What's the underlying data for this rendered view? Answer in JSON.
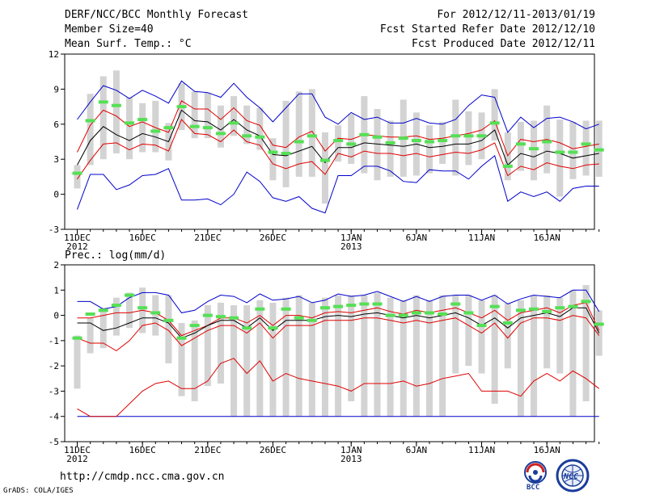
{
  "header": {
    "title": "DERF/NCC/BCC Monthly Forecast",
    "member_size": "Member Size=40",
    "variable1": "Mean Surf. Temp.: °C",
    "period": "For 2012/12/11-2013/01/19",
    "started": "Fcst Started Refer Date 2012/12/10",
    "produced": "Fcst Produced Date 2012/12/11"
  },
  "footer": {
    "url": "http://cmdp.ncc.cma.gov.cn",
    "grads": "GrADS: COLA/IGES",
    "logo_bcc": "BCC",
    "logo_ncc": "NCC"
  },
  "colors": {
    "box": "#d3d3d3",
    "median": "#55e055",
    "mean": "#000000",
    "std": "#e00000",
    "extreme": "#0000cc"
  },
  "chart_data": [
    {
      "type": "line",
      "title": "Mean Surf. Temp.: °C",
      "xlabel": "",
      "ylabel": "",
      "xlim": [
        0,
        39
      ],
      "ylim": [
        -3,
        12
      ],
      "yticks": [
        -3,
        0,
        3,
        6,
        9,
        12
      ],
      "xticks": [
        {
          "i": 0,
          "label": "11DEC",
          "sub": "2012"
        },
        {
          "i": 5,
          "label": "16DEC",
          "sub": ""
        },
        {
          "i": 10,
          "label": "21DEC",
          "sub": ""
        },
        {
          "i": 15,
          "label": "26DEC",
          "sub": ""
        },
        {
          "i": 21,
          "label": "1JAN",
          "sub": "2013"
        },
        {
          "i": 26,
          "label": "6JAN",
          "sub": ""
        },
        {
          "i": 31,
          "label": "11JAN",
          "sub": ""
        },
        {
          "i": 36,
          "label": "16JAN",
          "sub": ""
        }
      ],
      "series": [
        {
          "name": "max",
          "role": "extreme",
          "values": [
            -1.3,
            1.7,
            1.7,
            0.4,
            0.8,
            1.6,
            1.7,
            2.2,
            -0.5,
            -0.5,
            -0.4,
            -0.9,
            0.0,
            1.9,
            1.1,
            -0.3,
            -0.6,
            -0.2,
            -1.2,
            -1.6,
            1.6,
            1.6,
            2.4,
            2.4,
            2.0,
            1.1,
            1.0,
            2.1,
            2.0,
            2.0,
            1.3,
            2.4,
            3.3,
            -0.6,
            0.2,
            -0.2,
            0.2,
            -0.6,
            0.5,
            0.7,
            0.7
          ]
        },
        {
          "name": "min",
          "role": "extreme",
          "values": [
            6.4,
            7.9,
            9.3,
            8.9,
            8.2,
            8.9,
            8.4,
            7.8,
            9.7,
            8.8,
            8.7,
            8.3,
            9.5,
            8.3,
            7.4,
            6.2,
            7.4,
            8.6,
            8.6,
            6.6,
            6.0,
            7.0,
            6.4,
            6.6,
            6.1,
            6.1,
            6.5,
            6.1,
            6.0,
            6.4,
            7.6,
            8.5,
            8.3,
            5.3,
            6.6,
            5.7,
            6.5,
            6.6,
            6.2,
            5.6,
            6.0
          ]
        },
        {
          "name": "mean+std",
          "role": "std",
          "values": [
            3.6,
            5.9,
            7.2,
            6.7,
            5.8,
            6.2,
            5.7,
            5.3,
            8.0,
            7.3,
            7.3,
            6.4,
            7.4,
            6.3,
            5.9,
            4.2,
            4.0,
            4.9,
            5.4,
            3.7,
            4.8,
            4.7,
            5.1,
            5.0,
            4.9,
            4.9,
            5.0,
            4.7,
            4.8,
            5.0,
            5.2,
            5.5,
            6.3,
            3.3,
            4.7,
            4.5,
            4.7,
            4.4,
            3.9,
            4.1,
            4.3
          ]
        },
        {
          "name": "mean-std",
          "role": "std",
          "values": [
            1.3,
            2.9,
            4.3,
            4.4,
            3.8,
            4.3,
            4.2,
            3.7,
            6.4,
            5.2,
            5.1,
            4.5,
            5.5,
            4.5,
            4.2,
            2.6,
            2.2,
            2.6,
            2.8,
            1.7,
            3.5,
            3.2,
            3.7,
            3.5,
            3.5,
            3.3,
            3.5,
            3.2,
            3.4,
            3.6,
            3.5,
            3.8,
            4.4,
            1.6,
            2.4,
            2.1,
            2.7,
            2.4,
            2.2,
            2.5,
            2.6
          ]
        },
        {
          "name": "mean",
          "role": "mean",
          "values": [
            2.5,
            4.6,
            5.8,
            5.1,
            4.6,
            5.2,
            4.9,
            4.5,
            7.2,
            6.3,
            6.2,
            5.5,
            6.4,
            5.5,
            5.0,
            3.4,
            3.3,
            3.7,
            4.1,
            2.7,
            4.0,
            4.0,
            4.4,
            4.3,
            4.2,
            4.1,
            4.3,
            4.0,
            4.1,
            4.3,
            4.3,
            4.6,
            5.5,
            2.5,
            3.5,
            3.2,
            3.7,
            3.5,
            3.1,
            3.3,
            3.5
          ]
        }
      ],
      "boxes": {
        "low": [
          0.5,
          2.5,
          3.0,
          3.5,
          3.0,
          3.6,
          3.6,
          2.9,
          5.5,
          4.8,
          4.8,
          4.0,
          5.0,
          4.3,
          3.8,
          1.2,
          0.6,
          1.5,
          1.5,
          -0.8,
          2.8,
          2.6,
          1.8,
          1.2,
          1.5,
          1.5,
          1.6,
          1.8,
          2.6,
          1.6,
          2.5,
          3.0,
          4.6,
          1.2,
          2.0,
          1.2,
          1.8,
          -0.2,
          1.3,
          1.6,
          1.5
        ],
        "high": [
          2.5,
          8.6,
          10.1,
          10.6,
          8.3,
          7.8,
          8.0,
          6.1,
          9.5,
          8.8,
          8.7,
          7.6,
          8.4,
          7.6,
          7.4,
          4.8,
          8.0,
          8.8,
          9.0,
          5.3,
          5.9,
          6.9,
          8.4,
          7.3,
          6.3,
          8.1,
          7.0,
          5.9,
          6.2,
          8.1,
          7.1,
          7.0,
          9.0,
          5.3,
          6.2,
          6.3,
          7.6,
          6.4,
          6.2,
          6.3,
          6.3
        ],
        "median": [
          1.8,
          6.3,
          7.9,
          7.6,
          6.1,
          6.4,
          5.4,
          5.7,
          7.5,
          5.8,
          5.7,
          5.2,
          6.1,
          5.0,
          4.9,
          3.6,
          3.5,
          4.5,
          5.0,
          2.9,
          4.6,
          4.3,
          5.1,
          4.9,
          4.4,
          4.8,
          4.6,
          4.5,
          4.6,
          5.0,
          5.0,
          5.0,
          6.1,
          2.4,
          4.3,
          3.9,
          4.5,
          3.6,
          3.6,
          4.3,
          3.8
        ]
      }
    },
    {
      "type": "line",
      "title": "Prec.: log(mm/d)",
      "xlabel": "",
      "ylabel": "",
      "xlim": [
        0,
        39
      ],
      "ylim": [
        -5,
        2
      ],
      "yticks": [
        -5,
        -4,
        -3,
        -2,
        -1,
        0,
        1,
        2
      ],
      "xticks": [
        {
          "i": 0,
          "label": "11DEC",
          "sub": "2012"
        },
        {
          "i": 5,
          "label": "16DEC",
          "sub": ""
        },
        {
          "i": 10,
          "label": "21DEC",
          "sub": ""
        },
        {
          "i": 15,
          "label": "26DEC",
          "sub": ""
        },
        {
          "i": 21,
          "label": "1JAN",
          "sub": "2013"
        },
        {
          "i": 26,
          "label": "6JAN",
          "sub": ""
        },
        {
          "i": 31,
          "label": "11JAN",
          "sub": ""
        },
        {
          "i": 36,
          "label": "16JAN",
          "sub": ""
        }
      ],
      "series": [
        {
          "name": "max",
          "role": "extreme",
          "values": [
            0.55,
            0.55,
            0.25,
            0.35,
            0.7,
            0.9,
            0.9,
            0.8,
            0.1,
            0.2,
            0.55,
            0.8,
            0.75,
            0.5,
            0.85,
            0.6,
            0.65,
            0.75,
            0.5,
            0.6,
            0.85,
            0.75,
            0.8,
            0.95,
            0.75,
            0.55,
            0.75,
            0.55,
            0.75,
            0.8,
            0.8,
            0.6,
            0.8,
            0.45,
            0.65,
            0.8,
            0.75,
            0.7,
            1.0,
            1.0,
            0.15
          ]
        },
        {
          "name": "min",
          "role": "extreme",
          "values": [
            -4.0,
            -4.0,
            -4.0,
            -4.0,
            -4.0,
            -4.0,
            -4.0,
            -4.0,
            -4.0,
            -4.0,
            -4.0,
            -4.0,
            -4.0,
            -4.0,
            -4.0,
            -4.0,
            -4.0,
            -4.0,
            -4.0,
            -4.0,
            -4.0,
            -4.0,
            -4.0,
            -4.0,
            -4.0,
            -4.0,
            -4.0,
            -4.0,
            -4.0,
            -4.0,
            -4.0,
            -4.0,
            -4.0,
            -4.0,
            -4.0,
            -4.0,
            -4.0,
            -4.0,
            -4.0,
            -4.0,
            -4.0
          ]
        },
        {
          "name": "mean+std",
          "role": "std",
          "values": [
            -0.1,
            -0.1,
            0.0,
            0.1,
            0.1,
            0.2,
            0.1,
            -0.2,
            -0.8,
            -0.6,
            -0.4,
            -0.1,
            -0.1,
            -0.3,
            0.0,
            -0.4,
            0.0,
            0.0,
            -0.1,
            0.1,
            0.15,
            0.1,
            0.2,
            0.3,
            0.15,
            0.05,
            0.2,
            0.1,
            0.2,
            0.3,
            0.1,
            -0.1,
            0.2,
            -0.2,
            0.1,
            0.2,
            0.3,
            0.1,
            0.4,
            0.5,
            -0.6
          ]
        },
        {
          "name": "mean-std",
          "role": "std",
          "values": [
            -3.7,
            -4.0,
            -4.0,
            -4.0,
            -3.5,
            -3.0,
            -2.7,
            -2.6,
            -2.9,
            -2.9,
            -2.6,
            -1.9,
            -1.7,
            -2.3,
            -1.8,
            -2.6,
            -2.3,
            -2.5,
            -2.6,
            -2.7,
            -2.8,
            -3.0,
            -2.7,
            -2.7,
            -2.7,
            -2.6,
            -2.8,
            -2.7,
            -2.5,
            -2.4,
            -2.3,
            -3.0,
            -3.0,
            -3.0,
            -3.2,
            -2.6,
            -2.3,
            -2.6,
            -2.2,
            -2.5,
            -2.9
          ]
        },
        {
          "name": "rim",
          "role": "std",
          "values": [
            -0.9,
            -1.1,
            -1.1,
            -1.4,
            -1.0,
            -0.4,
            -0.3,
            -0.6,
            -1.2,
            -0.9,
            -0.6,
            -0.4,
            -0.4,
            -0.7,
            -0.3,
            -0.9,
            -0.4,
            -0.4,
            -0.4,
            -0.2,
            -0.2,
            -0.2,
            -0.1,
            -0.1,
            -0.2,
            -0.3,
            -0.2,
            -0.3,
            -0.2,
            -0.1,
            -0.4,
            -0.7,
            -0.3,
            -0.9,
            -0.3,
            -0.1,
            -0.1,
            -0.2,
            0.0,
            -0.1,
            -0.8
          ]
        },
        {
          "name": "mean",
          "role": "mean",
          "values": [
            -0.3,
            -0.3,
            -0.6,
            -0.5,
            -0.3,
            -0.1,
            -0.1,
            -0.3,
            -0.9,
            -0.7,
            -0.4,
            -0.2,
            -0.2,
            -0.5,
            -0.1,
            -0.6,
            -0.2,
            -0.2,
            -0.2,
            -0.05,
            0.0,
            -0.05,
            0.05,
            0.1,
            0.0,
            -0.1,
            0.0,
            -0.1,
            0.0,
            0.1,
            -0.1,
            -0.4,
            -0.1,
            -0.5,
            -0.1,
            0.0,
            0.1,
            -0.05,
            0.3,
            0.3,
            -0.7
          ]
        }
      ],
      "boxes": {
        "low": [
          -2.9,
          -1.5,
          -1.3,
          -0.8,
          -0.5,
          -0.7,
          -0.8,
          -1.9,
          -3.2,
          -3.4,
          -2.8,
          -2.7,
          -4.0,
          -4.0,
          -4.0,
          -4.0,
          -4.0,
          -4.0,
          -4.0,
          -4.0,
          -4.0,
          -3.4,
          -4.0,
          -4.0,
          -4.0,
          -4.0,
          -4.0,
          -4.0,
          -4.0,
          -2.3,
          -2.0,
          -2.3,
          -3.5,
          -2.1,
          -4.0,
          -4.0,
          -2.1,
          -2.3,
          -4.0,
          -3.4,
          -1.6
        ],
        "high": [
          -0.8,
          -0.1,
          0.3,
          0.7,
          0.9,
          1.1,
          0.8,
          0.8,
          -0.3,
          -0.2,
          0.4,
          0.5,
          0.4,
          0.4,
          0.6,
          0.5,
          0.7,
          0.8,
          0.5,
          0.7,
          0.8,
          0.8,
          0.8,
          0.9,
          0.7,
          0.6,
          0.8,
          0.6,
          0.8,
          0.8,
          0.8,
          0.6,
          0.8,
          0.5,
          0.6,
          0.8,
          0.8,
          0.7,
          1.0,
          1.2,
          0.2
        ],
        "median": [
          -0.9,
          0.05,
          0.2,
          0.4,
          0.8,
          0.3,
          0.1,
          -0.2,
          -0.9,
          -0.4,
          0.0,
          -0.05,
          -0.1,
          -0.5,
          0.25,
          -0.5,
          0.25,
          -0.1,
          -0.2,
          0.3,
          0.35,
          0.4,
          0.45,
          0.45,
          0.0,
          0.0,
          0.1,
          0.1,
          0.05,
          0.45,
          0.1,
          -0.4,
          0.35,
          -0.3,
          0.2,
          0.25,
          0.15,
          0.3,
          0.35,
          0.55,
          -0.35
        ]
      }
    }
  ]
}
